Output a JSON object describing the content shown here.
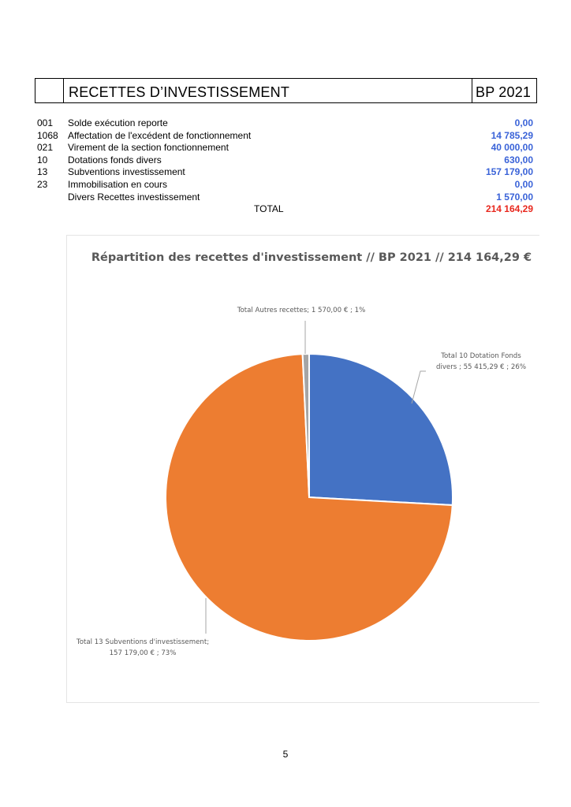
{
  "header": {
    "title": "RECETTES D’INVESTISSEMENT",
    "column": "BP 2021"
  },
  "rows": [
    {
      "code": "001",
      "label": "Solde exécution reporte",
      "amount": "0,00"
    },
    {
      "code": "1068",
      "label": "Affectation de l'excédent de fonctionnement",
      "amount": "14 785,29"
    },
    {
      "code": "021",
      "label": "Virement de la section fonctionnement",
      "amount": "40 000,00"
    },
    {
      "code": "10",
      "label": "Dotations fonds divers",
      "amount": "630,00"
    },
    {
      "code": "13",
      "label": "Subventions investissement",
      "amount": "157 179,00"
    },
    {
      "code": "23",
      "label": "Immobilisation en cours",
      "amount": "0,00"
    },
    {
      "code": "",
      "label": "Divers Recettes investissement",
      "amount": "1 570,00"
    }
  ],
  "total": {
    "label": "TOTAL",
    "amount": "214 164,29"
  },
  "colors": {
    "amount": "#3a63d8",
    "total": "#e8281e"
  },
  "chart_data": {
    "type": "pie",
    "title": "Répartition des recettes d'investissement // BP 2021 // 214 164,29 €",
    "slices": [
      {
        "name": "Total 10 Dotation Fonds divers",
        "value": 55415.29,
        "value_label": "55 415,29 €",
        "percent": "26%",
        "color": "#4472c4",
        "label_lines": [
          "Total 10 Dotation Fonds",
          "divers ;  55 415,29 € ; 26%"
        ]
      },
      {
        "name": "Total 13 Subventions d'investissement",
        "value": 157179.0,
        "value_label": "157 179,00 €",
        "percent": "73%",
        "color": "#ed7d31",
        "label_lines": [
          "Total 13 Subventions d'investissement;",
          "157 179,00 € ; 73%"
        ]
      },
      {
        "name": "Total Autres recettes",
        "value": 1570.0,
        "value_label": "1 570,00 €",
        "percent": "1%",
        "color": "#a5a5a5",
        "label_lines": [
          "Total Autres recettes;  1 570,00 € ; 1%"
        ]
      }
    ],
    "legend": "none"
  },
  "page_number": "5"
}
